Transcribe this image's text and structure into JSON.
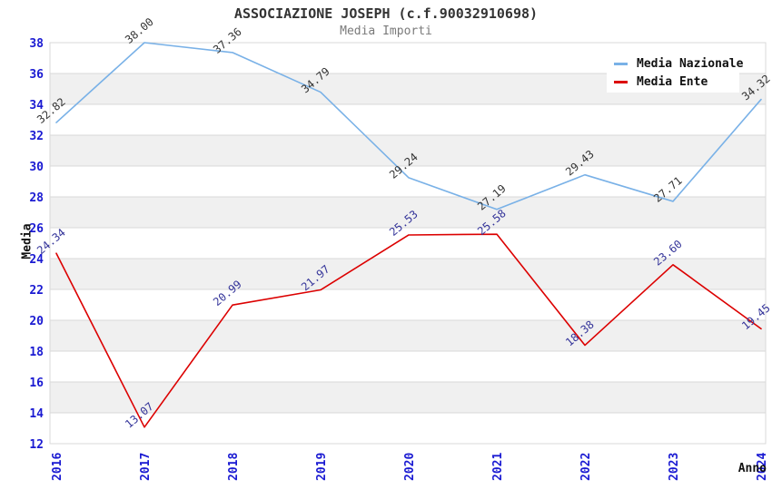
{
  "header": {
    "title": "ASSOCIAZIONE JOSEPH (c.f.90032910698)",
    "subtitle": "Media Importi"
  },
  "axes": {
    "y_title": "Media",
    "x_title": "Anno",
    "tick_color": "#1a1ad2"
  },
  "legend": {
    "items": [
      {
        "label": "Media Nazionale",
        "color": "#79b1e7"
      },
      {
        "label": "Media Ente",
        "color": "#dc0000"
      }
    ]
  },
  "colors": {
    "band_gray": "#f0f0f0",
    "band_white": "#ffffff",
    "gridline": "#d9d9d9",
    "title": "#333333",
    "subtitle": "#7a7a7a"
  },
  "chart_data": {
    "type": "line",
    "title": "ASSOCIAZIONE JOSEPH (c.f.90032910698)",
    "subtitle": "Media Importi",
    "xlabel": "Anno",
    "ylabel": "Media",
    "categories": [
      "2016",
      "2017",
      "2018",
      "2019",
      "2020",
      "2021",
      "2022",
      "2023",
      "2024"
    ],
    "series": [
      {
        "name": "Media Nazionale",
        "color": "#79b1e7",
        "label_color": "#333333",
        "values": [
          32.82,
          38.0,
          37.36,
          34.79,
          29.24,
          27.19,
          29.43,
          27.71,
          34.32
        ],
        "labels": [
          "32.82",
          "38.00",
          "37.36",
          "34.79",
          "29.24",
          "27.19",
          "29.43",
          "27.71",
          "34.32"
        ]
      },
      {
        "name": "Media Ente",
        "color": "#dc0000",
        "label_color": "#333399",
        "values": [
          24.34,
          13.07,
          20.99,
          21.97,
          25.53,
          25.58,
          18.38,
          23.6,
          19.45
        ],
        "labels": [
          "24.34",
          "13.07",
          "20.99",
          "21.97",
          "25.53",
          "25.58",
          "18.38",
          "23.60",
          "19.45"
        ]
      }
    ],
    "ylim": [
      12,
      38
    ],
    "ytick_step": 2,
    "grid": "horizontal-bands-alternating",
    "legend_position": "top-right"
  }
}
